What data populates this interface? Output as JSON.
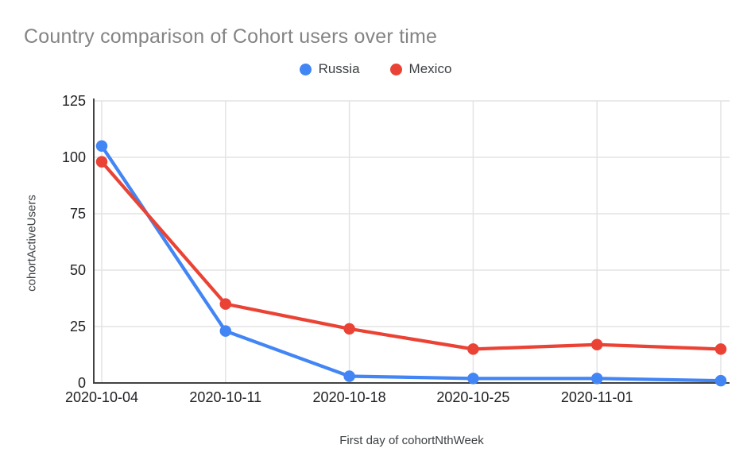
{
  "chart_data": {
    "type": "line",
    "title": "Country comparison of Cohort users over time",
    "xlabel": "First day of cohortNthWeek",
    "ylabel": "cohortActiveUsers",
    "categories": [
      "2020-10-04",
      "2020-10-11",
      "2020-10-18",
      "2020-10-25",
      "2020-11-01",
      ""
    ],
    "series": [
      {
        "name": "Russia",
        "color": "#4285F4",
        "values": [
          105,
          23,
          3,
          2,
          2,
          1
        ]
      },
      {
        "name": "Mexico",
        "color": "#EA4335",
        "values": [
          98,
          35,
          24,
          15,
          17,
          15
        ]
      }
    ],
    "ylim": [
      0,
      125
    ],
    "yticks": [
      0,
      25,
      50,
      75,
      100,
      125
    ],
    "grid": true,
    "legend_position": "top-center",
    "marker": "circle"
  },
  "colors": {
    "title_text": "#848484",
    "tick_text": "#202124",
    "axis_line": "#424242",
    "gridline": "#e3e3e3",
    "legend_text": "#3c4043",
    "background": "#ffffff"
  }
}
